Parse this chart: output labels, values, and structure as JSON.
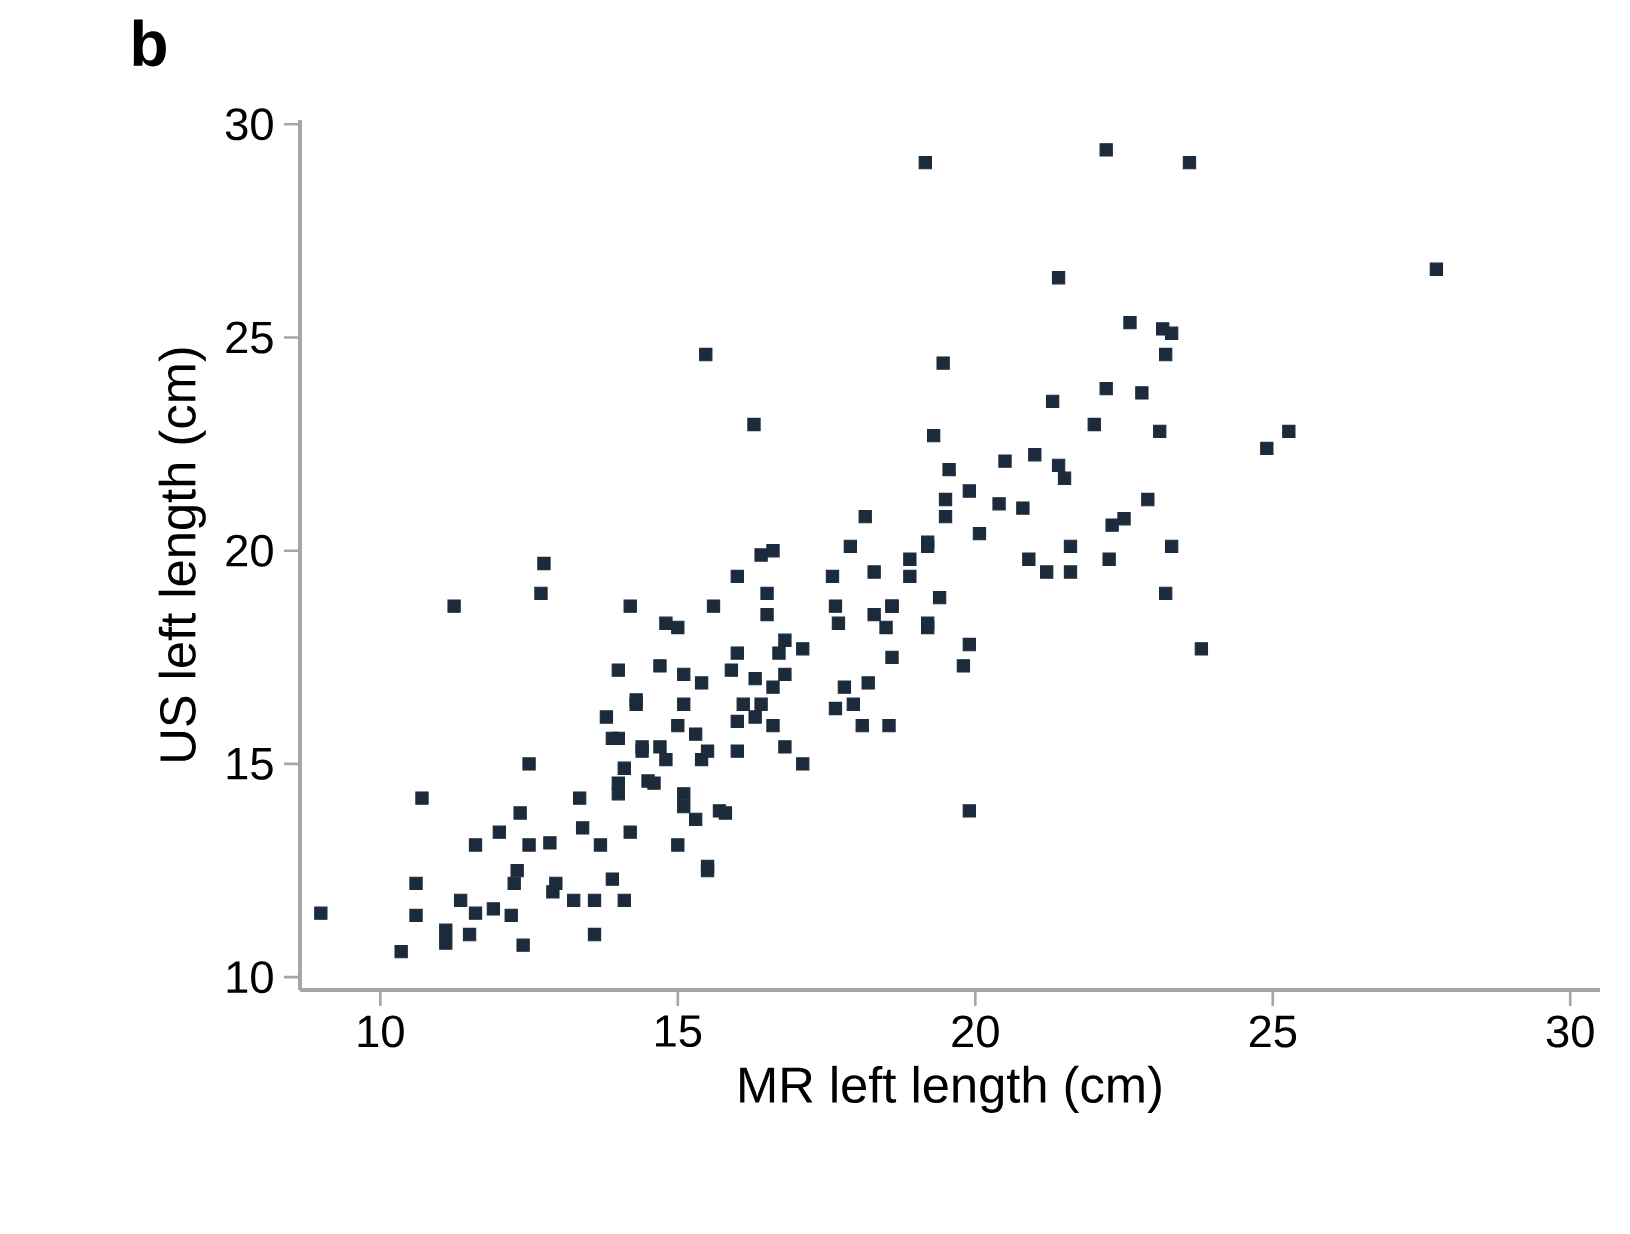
{
  "chart_data": {
    "type": "scatter",
    "xlabel": "MR left length (cm)",
    "ylabel": "US left length (cm)",
    "annotations": [
      "b"
    ],
    "xlim": [
      8.65,
      30.5
    ],
    "ylim": [
      9.7,
      30.1
    ],
    "xticks": [
      10,
      15,
      20,
      25,
      30
    ],
    "yticks": [
      10,
      15,
      20,
      25,
      30
    ],
    "marker": "square",
    "grid": false,
    "series": [
      {
        "color": "#1c2b3c",
        "x": [
          9.0,
          11.24,
          10.7,
          12.75,
          12.7,
          15.47,
          16.28,
          19.16,
          22.2,
          23.6,
          27.75,
          21.4,
          19.46,
          24.9,
          25.27,
          23.8,
          19.9,
          22.8,
          21.3,
          22.2,
          22.0,
          23.1,
          19.3,
          22.6,
          23.15,
          23.3,
          23.2,
          22.9,
          22.5,
          22.3,
          23.3,
          22.25,
          23.2,
          21.6,
          21.6,
          20.9,
          21.2,
          20.07,
          20.5,
          21.0,
          21.4,
          21.5,
          19.56,
          19.9,
          19.5,
          19.5,
          20.4,
          20.8,
          19.2,
          18.9,
          18.9,
          18.6,
          19.2,
          19.9,
          19.8,
          18.6,
          18.15,
          17.9,
          16.6,
          16.4,
          16.0,
          17.6,
          18.3,
          19.2,
          14.2,
          15.6,
          16.5,
          16.5,
          17.65,
          17.7,
          18.6,
          14.8,
          15.0,
          18.3,
          18.5,
          19.4,
          19.2,
          16.8,
          17.1,
          16.7,
          16.0,
          15.9,
          15.1,
          15.4,
          14.7,
          14.0,
          16.3,
          16.6,
          16.8,
          16.1,
          16.4,
          16.0,
          16.3,
          17.8,
          18.2,
          17.65,
          17.95,
          18.1,
          18.55,
          16.6,
          16.8,
          17.1,
          16.0,
          15.1,
          15.3,
          15.4,
          15.0,
          14.3,
          13.8,
          13.9,
          14.4,
          14.7,
          14.8,
          14.1,
          14.5,
          14.0,
          15.1,
          15.3,
          15.7,
          14.2,
          15.0,
          15.5,
          14.3,
          14.0,
          15.5,
          14.4,
          12.5,
          14.0,
          14.6,
          13.35,
          15.1,
          15.8,
          12.35,
          12.0,
          11.6,
          12.5,
          12.85,
          13.4,
          13.7,
          15.5,
          10.6,
          12.25,
          12.3,
          12.95,
          13.25,
          13.6,
          13.9,
          14.1,
          11.35,
          11.6,
          11.9,
          12.2,
          12.9,
          10.6,
          11.1,
          11.1,
          11.5,
          10.35,
          12.4,
          13.6
        ],
        "values": [
          11.5,
          18.7,
          14.2,
          19.7,
          19.0,
          24.6,
          22.96,
          29.1,
          29.4,
          29.1,
          26.6,
          26.4,
          24.4,
          22.4,
          22.8,
          17.7,
          13.9,
          23.7,
          23.5,
          23.8,
          22.96,
          22.8,
          22.7,
          25.35,
          25.2,
          25.1,
          24.6,
          21.2,
          20.75,
          20.6,
          20.1,
          19.8,
          19.0,
          20.1,
          19.5,
          19.8,
          19.5,
          20.4,
          22.1,
          22.25,
          22.0,
          21.7,
          21.9,
          21.4,
          21.2,
          20.8,
          21.1,
          21.0,
          20.2,
          19.8,
          19.4,
          18.7,
          18.3,
          17.8,
          17.3,
          17.5,
          20.8,
          20.1,
          20.0,
          19.9,
          19.4,
          19.4,
          19.5,
          20.1,
          18.7,
          18.7,
          19.0,
          18.5,
          18.7,
          18.3,
          18.7,
          18.3,
          18.2,
          18.5,
          18.2,
          18.9,
          18.2,
          17.9,
          17.7,
          17.6,
          17.6,
          17.2,
          17.1,
          16.9,
          17.3,
          17.2,
          17.0,
          16.8,
          17.1,
          16.4,
          16.4,
          16.0,
          16.1,
          16.8,
          16.9,
          16.3,
          16.4,
          15.9,
          15.9,
          15.9,
          15.4,
          15.0,
          15.3,
          16.4,
          15.7,
          15.1,
          15.9,
          16.4,
          16.1,
          15.6,
          15.4,
          15.4,
          15.1,
          14.9,
          14.6,
          14.3,
          14.0,
          13.7,
          13.9,
          13.4,
          13.1,
          12.5,
          16.5,
          15.6,
          15.3,
          15.3,
          15.0,
          14.55,
          14.55,
          14.2,
          14.3,
          13.85,
          13.85,
          13.4,
          13.1,
          13.1,
          13.15,
          13.5,
          13.1,
          12.6,
          12.2,
          12.2,
          12.5,
          12.2,
          11.8,
          11.8,
          12.3,
          11.8,
          11.8,
          11.5,
          11.6,
          11.45,
          12.0,
          11.45,
          11.1,
          10.8,
          11.0,
          10.6,
          10.75,
          11.0
        ]
      }
    ]
  }
}
